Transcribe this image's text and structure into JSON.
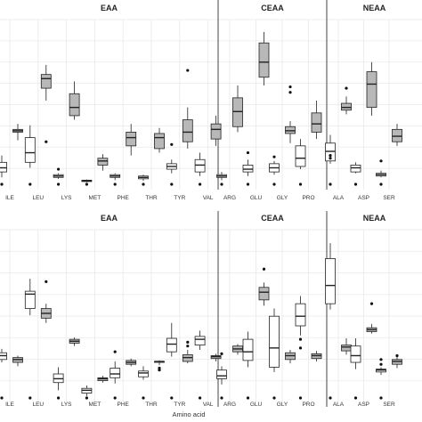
{
  "colors": {
    "white_box": "#ffffff",
    "grey_box": "#b8b8b8",
    "stroke": "#222222",
    "grid": "#e9e9e9",
    "divider": "#444444"
  },
  "chart_data": [
    {
      "type": "box",
      "panel": "top",
      "facets": [
        {
          "label": "EAA",
          "categories": [
            "ILE",
            "LEU",
            "LYS",
            "MET",
            "PHE",
            "THR",
            "TYR",
            "VAL"
          ]
        },
        {
          "label": "CEAA",
          "categories": [
            "ARG",
            "GLU",
            "GLY",
            "PRO"
          ]
        },
        {
          "label": "NEAA",
          "categories": [
            "ALA",
            "ASP",
            "SER"
          ]
        }
      ],
      "xlabel": "",
      "ylabel": "",
      "y_axis": "unlabeled",
      "grid": true,
      "groups": [
        {
          "name": "",
          "color": "#ffffff"
        },
        {
          "name": "",
          "color": "#b8b8b8"
        }
      ],
      "boxes": [
        {
          "category": "ILE",
          "group": 0,
          "min": 5,
          "q1": 9,
          "median": 12,
          "q3": 16,
          "max": 21,
          "outliers": [
            0
          ]
        },
        {
          "category": "ILE",
          "group": 1,
          "min": 32,
          "q1": 38,
          "median": 39,
          "q3": 40,
          "max": 44,
          "outliers": []
        },
        {
          "category": "LEU",
          "group": 0,
          "min": 12,
          "q1": 16,
          "median": 23,
          "q3": 34,
          "max": 43,
          "outliers": [
            0
          ]
        },
        {
          "category": "LEU",
          "group": 1,
          "min": 61,
          "q1": 70,
          "median": 77,
          "q3": 80,
          "max": 87,
          "outliers": [
            31
          ]
        },
        {
          "category": "LYS",
          "group": 0,
          "min": 4,
          "q1": 5,
          "median": 6,
          "q3": 7,
          "max": 8,
          "outliers": [
            11,
            0
          ]
        },
        {
          "category": "LYS",
          "group": 1,
          "min": 47,
          "q1": 50,
          "median": 56,
          "q3": 66,
          "max": 75,
          "outliers": []
        },
        {
          "category": "MET",
          "group": 0,
          "min": 1.5,
          "q1": 2,
          "median": 2.5,
          "q3": 3,
          "max": 3.5,
          "outliers": [
            0
          ]
        },
        {
          "category": "MET",
          "group": 1,
          "min": 10,
          "q1": 14,
          "median": 17,
          "q3": 19,
          "max": 22,
          "outliers": []
        },
        {
          "category": "PHE",
          "group": 0,
          "min": 3,
          "q1": 5,
          "median": 6,
          "q3": 7,
          "max": 8,
          "outliers": [
            0
          ]
        },
        {
          "category": "PHE",
          "group": 1,
          "min": 21,
          "q1": 28,
          "median": 34,
          "q3": 38,
          "max": 44,
          "outliers": []
        },
        {
          "category": "THR",
          "group": 0,
          "min": 2.5,
          "q1": 4,
          "median": 5,
          "q3": 6,
          "max": 7,
          "outliers": [
            0
          ]
        },
        {
          "category": "THR",
          "group": 1,
          "min": 23,
          "q1": 26,
          "median": 34,
          "q3": 37,
          "max": 41,
          "outliers": []
        },
        {
          "category": "TYR",
          "group": 0,
          "min": 8,
          "q1": 11,
          "median": 13,
          "q3": 15,
          "max": 18,
          "outliers": [
            29,
            0
          ]
        },
        {
          "category": "TYR",
          "group": 1,
          "min": 26,
          "q1": 31,
          "median": 38,
          "q3": 47,
          "max": 56,
          "outliers": [
            83
          ]
        },
        {
          "category": "VAL",
          "group": 0,
          "min": 6,
          "q1": 9,
          "median": 14,
          "q3": 18,
          "max": 23,
          "outliers": [
            0
          ]
        },
        {
          "category": "VAL",
          "group": 1,
          "min": 28,
          "q1": 33,
          "median": 40,
          "q3": 44,
          "max": 50,
          "outliers": []
        },
        {
          "category": "ARG",
          "group": 0,
          "min": 3,
          "q1": 5,
          "median": 6,
          "q3": 7,
          "max": 9,
          "outliers": [
            0
          ]
        },
        {
          "category": "ARG",
          "group": 1,
          "min": 38,
          "q1": 42,
          "median": 53,
          "q3": 63,
          "max": 72,
          "outliers": []
        },
        {
          "category": "GLU",
          "group": 0,
          "min": 6,
          "q1": 9,
          "median": 11,
          "q3": 14,
          "max": 18,
          "outliers": [
            23,
            0
          ]
        },
        {
          "category": "GLU",
          "group": 1,
          "min": 72,
          "q1": 78,
          "median": 89,
          "q3": 103,
          "max": 111,
          "outliers": []
        },
        {
          "category": "GLY",
          "group": 0,
          "min": 7,
          "q1": 9,
          "median": 12,
          "q3": 15,
          "max": 17,
          "outliers": [
            20,
            0
          ]
        },
        {
          "category": "GLY",
          "group": 1,
          "min": 30,
          "q1": 37,
          "median": 39,
          "q3": 42,
          "max": 46,
          "outliers": [
            67,
            71
          ]
        },
        {
          "category": "PRO",
          "group": 0,
          "min": 11,
          "q1": 13,
          "median": 19,
          "q3": 28,
          "max": 33,
          "outliers": [
            0
          ]
        },
        {
          "category": "PRO",
          "group": 1,
          "min": 33,
          "q1": 38,
          "median": 44,
          "q3": 52,
          "max": 61,
          "outliers": []
        },
        {
          "category": "ALA",
          "group": 0,
          "min": 15,
          "q1": 17,
          "median": 24,
          "q3": 30,
          "max": 36,
          "outliers": [
            0,
            19,
            21
          ]
        },
        {
          "category": "ALA",
          "group": 1,
          "min": 51,
          "q1": 54,
          "median": 56,
          "q3": 59,
          "max": 64,
          "outliers": [
            70
          ]
        },
        {
          "category": "ASP",
          "group": 0,
          "min": 8,
          "q1": 9,
          "median": 12,
          "q3": 14,
          "max": 16,
          "outliers": [
            0
          ]
        },
        {
          "category": "ASP",
          "group": 1,
          "min": 50,
          "q1": 56,
          "median": 73,
          "q3": 82,
          "max": 89,
          "outliers": []
        },
        {
          "category": "SER",
          "group": 0,
          "min": 5,
          "q1": 6,
          "median": 7,
          "q3": 8,
          "max": 10,
          "outliers": [
            17,
            0
          ]
        },
        {
          "category": "SER",
          "group": 1,
          "min": 28,
          "q1": 31,
          "median": 35,
          "q3": 40,
          "max": 44,
          "outliers": []
        }
      ]
    },
    {
      "type": "box",
      "panel": "bottom",
      "facets": [
        {
          "label": "EAA",
          "categories": [
            "ILE",
            "LEU",
            "LYS",
            "MET",
            "PHE",
            "THR",
            "TYR",
            "VAL"
          ]
        },
        {
          "label": "CEAA",
          "categories": [
            "ARG",
            "GLU",
            "GLY",
            "PRO"
          ]
        },
        {
          "label": "NEAA",
          "categories": [
            "ALA",
            "ASP",
            "SER"
          ]
        }
      ],
      "xlabel": "Amino acid",
      "ylabel": "",
      "y_axis": "unlabeled",
      "grid": true,
      "groups": [
        {
          "name": "",
          "color": "#ffffff"
        },
        {
          "name": "",
          "color": "#b8b8b8"
        }
      ],
      "boxes": [
        {
          "category": "ILE",
          "group": 0,
          "min": 37,
          "q1": 40,
          "median": 44,
          "q3": 47,
          "max": 51,
          "outliers": [
            0
          ]
        },
        {
          "category": "ILE",
          "group": 1,
          "min": 33,
          "q1": 37,
          "median": 40,
          "q3": 42,
          "max": 44,
          "outliers": []
        },
        {
          "category": "LEU",
          "group": 0,
          "min": 86,
          "q1": 93,
          "median": 108,
          "q3": 111,
          "max": 124,
          "outliers": [
            0
          ]
        },
        {
          "category": "LEU",
          "group": 1,
          "min": 78,
          "q1": 83,
          "median": 88,
          "q3": 93,
          "max": 98,
          "outliers": [
            121
          ]
        },
        {
          "category": "LYS",
          "group": 0,
          "min": 8,
          "q1": 16,
          "median": 20,
          "q3": 25,
          "max": 32,
          "outliers": [
            0
          ]
        },
        {
          "category": "LYS",
          "group": 1,
          "min": 54,
          "q1": 57,
          "median": 59,
          "q3": 61,
          "max": 63,
          "outliers": []
        },
        {
          "category": "MET",
          "group": 0,
          "min": 2,
          "q1": 5,
          "median": 8,
          "q3": 10,
          "max": 13,
          "outliers": [
            0
          ]
        },
        {
          "category": "MET",
          "group": 1,
          "min": 16,
          "q1": 18,
          "median": 20,
          "q3": 21,
          "max": 23,
          "outliers": []
        },
        {
          "category": "PHE",
          "group": 0,
          "min": 15,
          "q1": 21,
          "median": 25,
          "q3": 31,
          "max": 38,
          "outliers": [
            48,
            0
          ]
        },
        {
          "category": "PHE",
          "group": 1,
          "min": 33,
          "q1": 35,
          "median": 37,
          "q3": 39,
          "max": 41,
          "outliers": []
        },
        {
          "category": "THR",
          "group": 0,
          "min": 19,
          "q1": 22,
          "median": 26,
          "q3": 28,
          "max": 33,
          "outliers": [
            0
          ]
        },
        {
          "category": "THR",
          "group": 1,
          "min": 34,
          "q1": 37,
          "median": 38,
          "q3": 38,
          "max": 39,
          "outliers": [
            29,
            31
          ]
        },
        {
          "category": "TYR",
          "group": 0,
          "min": 43,
          "q1": 48,
          "median": 56,
          "q3": 62,
          "max": 78,
          "outliers": [
            0
          ]
        },
        {
          "category": "TYR",
          "group": 1,
          "min": 36,
          "q1": 38,
          "median": 42,
          "q3": 45,
          "max": 50,
          "outliers": [
            54,
            58
          ]
        },
        {
          "category": "VAL",
          "group": 0,
          "min": 50,
          "q1": 55,
          "median": 61,
          "q3": 64,
          "max": 70,
          "outliers": [
            0
          ]
        },
        {
          "category": "VAL",
          "group": 1,
          "min": 38,
          "q1": 41,
          "median": 43,
          "q3": 44,
          "max": 46,
          "outliers": []
        },
        {
          "category": "ARG",
          "group": 0,
          "min": 14,
          "q1": 20,
          "median": 23,
          "q3": 29,
          "max": 33,
          "outliers": [
            46,
            0
          ]
        },
        {
          "category": "ARG",
          "group": 1,
          "min": 45,
          "q1": 48,
          "median": 51,
          "q3": 54,
          "max": 56,
          "outliers": []
        },
        {
          "category": "GLU",
          "group": 0,
          "min": 32,
          "q1": 39,
          "median": 48,
          "q3": 61,
          "max": 69,
          "outliers": [
            0
          ]
        },
        {
          "category": "GLU",
          "group": 1,
          "min": 96,
          "q1": 102,
          "median": 110,
          "q3": 115,
          "max": 120,
          "outliers": [
            134
          ]
        },
        {
          "category": "GLY",
          "group": 0,
          "min": 27,
          "q1": 32,
          "median": 52,
          "q3": 85,
          "max": 93,
          "outliers": [
            0
          ]
        },
        {
          "category": "GLY",
          "group": 1,
          "min": 36,
          "q1": 40,
          "median": 44,
          "q3": 47,
          "max": 50,
          "outliers": []
        },
        {
          "category": "PRO",
          "group": 0,
          "min": 65,
          "q1": 75,
          "median": 85,
          "q3": 98,
          "max": 106,
          "outliers": [
            52,
            61,
            0
          ]
        },
        {
          "category": "PRO",
          "group": 1,
          "min": 38,
          "q1": 41,
          "median": 44,
          "q3": 46,
          "max": 49,
          "outliers": []
        },
        {
          "category": "ALA",
          "group": 0,
          "min": 92,
          "q1": 98,
          "median": 117,
          "q3": 145,
          "max": 161,
          "outliers": [
            0
          ]
        },
        {
          "category": "ALA",
          "group": 1,
          "min": 45,
          "q1": 49,
          "median": 53,
          "q3": 55,
          "max": 62,
          "outliers": []
        },
        {
          "category": "ASP",
          "group": 0,
          "min": 30,
          "q1": 37,
          "median": 44,
          "q3": 54,
          "max": 62,
          "outliers": [
            0
          ]
        },
        {
          "category": "ASP",
          "group": 1,
          "min": 67,
          "q1": 69,
          "median": 71,
          "q3": 73,
          "max": 77,
          "outliers": [
            98
          ]
        },
        {
          "category": "SER",
          "group": 0,
          "min": 24,
          "q1": 27,
          "median": 29,
          "q3": 30,
          "max": 32,
          "outliers": [
            0,
            35,
            40
          ]
        },
        {
          "category": "SER",
          "group": 1,
          "min": 31,
          "q1": 35,
          "median": 38,
          "q3": 40,
          "max": 43,
          "outliers": [
            44
          ]
        }
      ]
    }
  ]
}
